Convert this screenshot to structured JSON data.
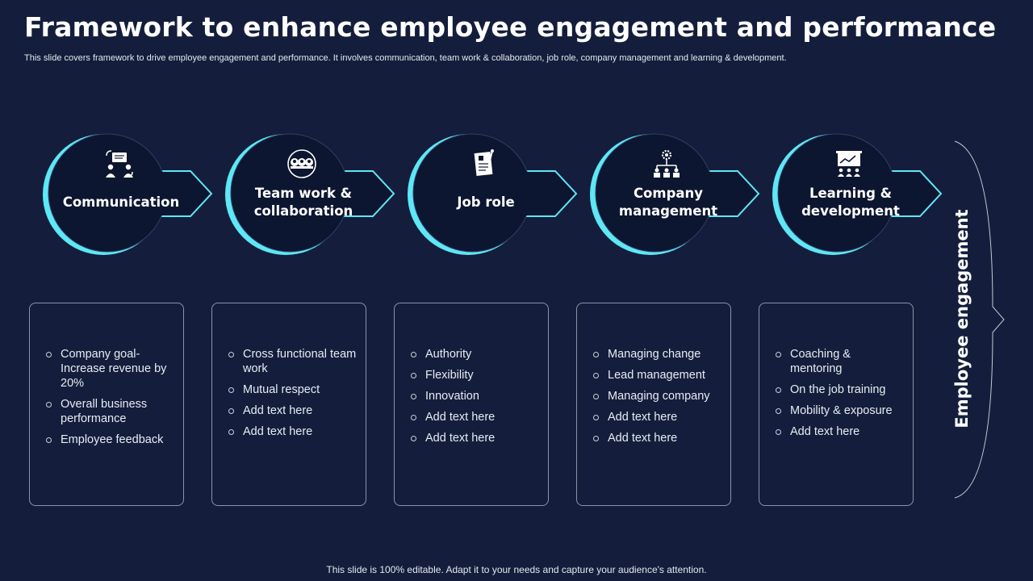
{
  "title": "Framework to enhance employee engagement and performance",
  "subtitle": "This slide covers framework to drive  employee engagement and performance. It involves communication, team work & collaboration, job role, company management and learning & development.",
  "stages": [
    {
      "label": "Communication",
      "icon": "communication-icon",
      "items": [
        "Company goal- Increase revenue by 20%",
        "Overall business performance",
        "Employee feedback"
      ]
    },
    {
      "label": "Team work & collaboration",
      "icon": "team-icon",
      "items": [
        "Cross functional team work",
        "Mutual respect",
        "Add text here",
        "Add text here"
      ]
    },
    {
      "label": "Job role",
      "icon": "resume-icon",
      "items": [
        "Authority",
        "Flexibility",
        "Innovation",
        "Add text here",
        "Add text here"
      ]
    },
    {
      "label": "Company management",
      "icon": "org-chart-icon",
      "items": [
        "Managing change",
        "Lead management",
        "Managing company",
        "Add text here",
        "Add text here"
      ]
    },
    {
      "label": "Learning & development",
      "icon": "training-icon",
      "items": [
        "Coaching & mentoring",
        "On the job training",
        "Mobility  & exposure",
        "Add text here"
      ]
    }
  ],
  "side_label": "Employee engagement",
  "footer": "This slide is 100% editable. Adapt it to your needs and capture your audience's attention.",
  "colors": {
    "background": "#141e3c",
    "accent": "#5ee7f5",
    "shape_fill": "#0d1630"
  }
}
